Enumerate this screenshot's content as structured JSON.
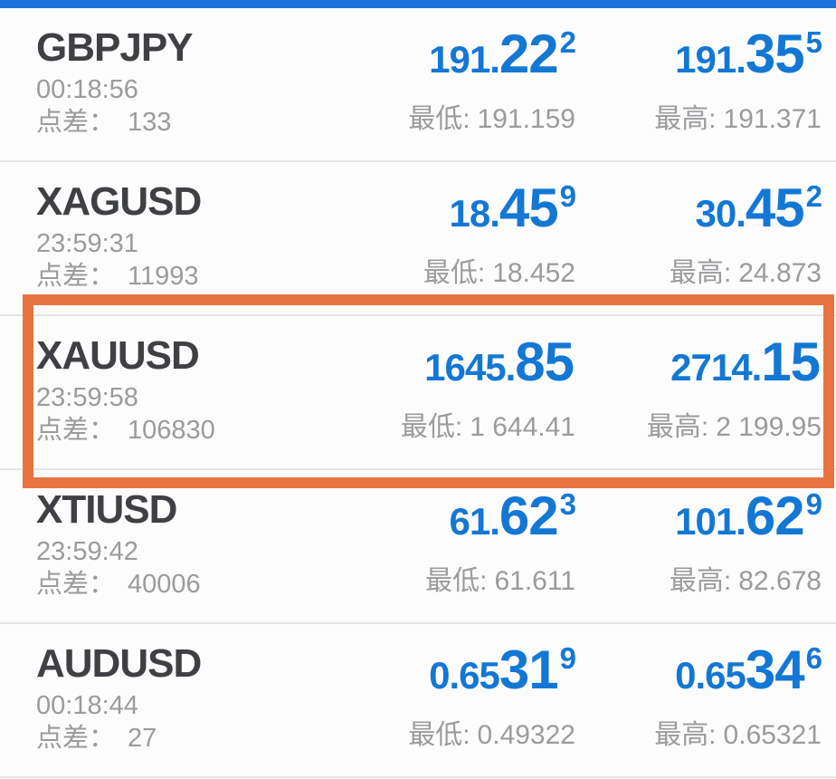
{
  "labels": {
    "spread": "点差：",
    "low": "最低:",
    "high": "最高:"
  },
  "colors": {
    "price_blue": "#1377d4",
    "top_bar_blue": "#1b74da",
    "highlight_orange": "#e87540",
    "symbol_text": "#3f4043",
    "secondary_text": "#9b9b9e"
  },
  "quotes": [
    {
      "symbol": "GBPJPY",
      "time": "00:18:56",
      "spread": "133",
      "bid": {
        "base": "191.",
        "big": "22",
        "sup": "2"
      },
      "ask": {
        "base": "191.",
        "big": "35",
        "sup": "5"
      },
      "low": "191.159",
      "high": "191.371",
      "highlighted": false
    },
    {
      "symbol": "XAGUSD",
      "time": "23:59:31",
      "spread": "11993",
      "bid": {
        "base": "18.",
        "big": "45",
        "sup": "9"
      },
      "ask": {
        "base": "30.",
        "big": "45",
        "sup": "2"
      },
      "low": "18.452",
      "high": "24.873",
      "highlighted": false
    },
    {
      "symbol": "XAUUSD",
      "time": "23:59:58",
      "spread": "106830",
      "bid": {
        "base": "1645.",
        "big": "85",
        "sup": ""
      },
      "ask": {
        "base": "2714.",
        "big": "15",
        "sup": ""
      },
      "low": "1 644.41",
      "high": "2 199.95",
      "highlighted": true
    },
    {
      "symbol": "XTIUSD",
      "time": "23:59:42",
      "spread": "40006",
      "bid": {
        "base": "61.",
        "big": "62",
        "sup": "3"
      },
      "ask": {
        "base": "101.",
        "big": "62",
        "sup": "9"
      },
      "low": "61.611",
      "high": "82.678",
      "highlighted": false
    },
    {
      "symbol": "AUDUSD",
      "time": "00:18:44",
      "spread": "27",
      "bid": {
        "base": "0.65",
        "big": "31",
        "sup": "9"
      },
      "ask": {
        "base": "0.65",
        "big": "34",
        "sup": "6"
      },
      "low": "0.49322",
      "high": "0.65321",
      "highlighted": false
    }
  ]
}
